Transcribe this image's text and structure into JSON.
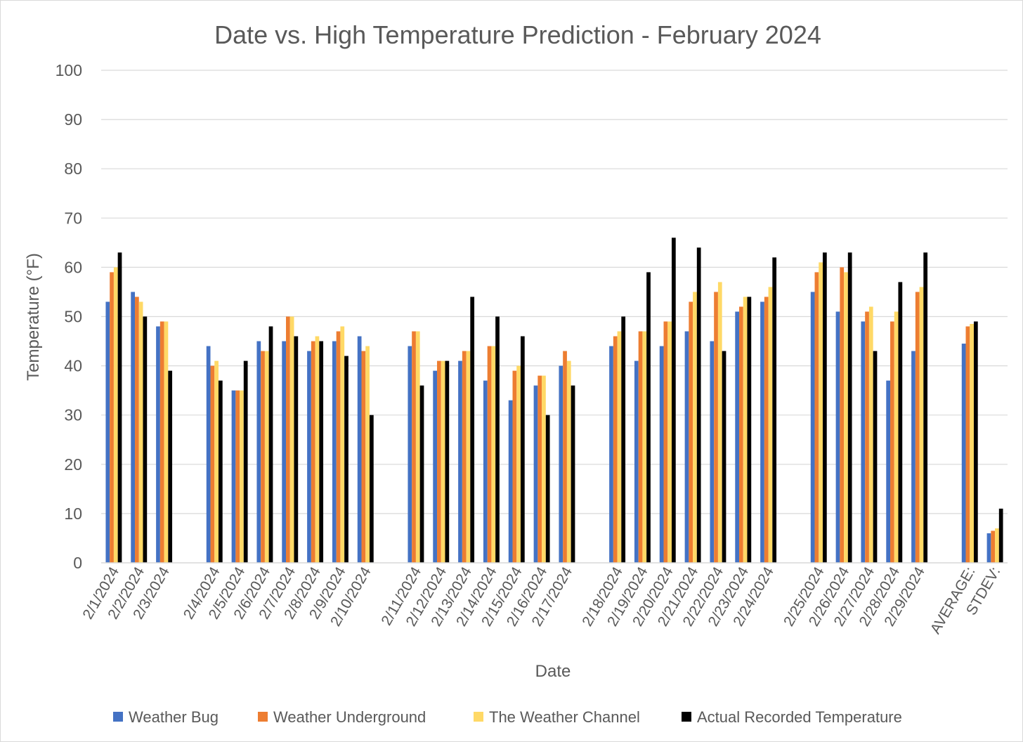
{
  "chart_data": {
    "type": "bar",
    "title": "Date vs. High Temperature Prediction - February 2024",
    "xlabel": "Date",
    "ylabel": "Temperature (°F)",
    "ylim": [
      0,
      100
    ],
    "ytick_step": 10,
    "grid": true,
    "legend_position": "bottom",
    "categories": [
      "2/1/2024",
      "2/2/2024",
      "2/3/2024",
      "",
      "2/4/2024",
      "2/5/2024",
      "2/6/2024",
      "2/7/2024",
      "2/8/2024",
      "2/9/2024",
      "2/10/2024",
      "",
      "2/11/2024",
      "2/12/2024",
      "2/13/2024",
      "2/14/2024",
      "2/15/2024",
      "2/16/2024",
      "2/17/2024",
      "",
      "2/18/2024",
      "2/19/2024",
      "2/20/2024",
      "2/21/2024",
      "2/22/2024",
      "2/23/2024",
      "2/24/2024",
      "",
      "2/25/2024",
      "2/26/2024",
      "2/27/2024",
      "2/28/2024",
      "2/29/2024",
      "",
      "AVERAGE:",
      "STDEV:"
    ],
    "series": [
      {
        "name": "Weather Bug",
        "color": "#4472c4",
        "values": [
          53,
          55,
          48,
          null,
          44,
          35,
          45,
          45,
          43,
          45,
          46,
          null,
          44,
          39,
          41,
          37,
          33,
          36,
          40,
          null,
          44,
          41,
          44,
          47,
          45,
          51,
          53,
          null,
          55,
          51,
          49,
          37,
          43,
          null,
          44.5,
          6
        ]
      },
      {
        "name": "Weather Underground",
        "color": "#ed7d31",
        "values": [
          59,
          54,
          49,
          null,
          40,
          35,
          43,
          50,
          45,
          47,
          43,
          null,
          47,
          41,
          43,
          44,
          39,
          38,
          43,
          null,
          46,
          47,
          49,
          53,
          55,
          52,
          54,
          null,
          59,
          60,
          51,
          49,
          55,
          null,
          48,
          6.5
        ]
      },
      {
        "name": "The Weather Channel",
        "color": "#ffd966",
        "values": [
          60,
          53,
          49,
          null,
          41,
          35,
          43,
          50,
          46,
          48,
          44,
          null,
          47,
          41,
          43,
          44,
          40,
          38,
          41,
          null,
          47,
          47,
          49,
          55,
          57,
          54,
          56,
          null,
          61,
          59,
          52,
          51,
          56,
          null,
          48.5,
          7
        ]
      },
      {
        "name": "Actual Recorded Temperature",
        "color": "#000000",
        "values": [
          63,
          50,
          39,
          null,
          37,
          41,
          48,
          46,
          45,
          42,
          30,
          null,
          36,
          41,
          54,
          50,
          46,
          30,
          36,
          null,
          50,
          59,
          66,
          64,
          43,
          54,
          62,
          null,
          63,
          63,
          43,
          57,
          63,
          null,
          49,
          11
        ]
      }
    ]
  }
}
